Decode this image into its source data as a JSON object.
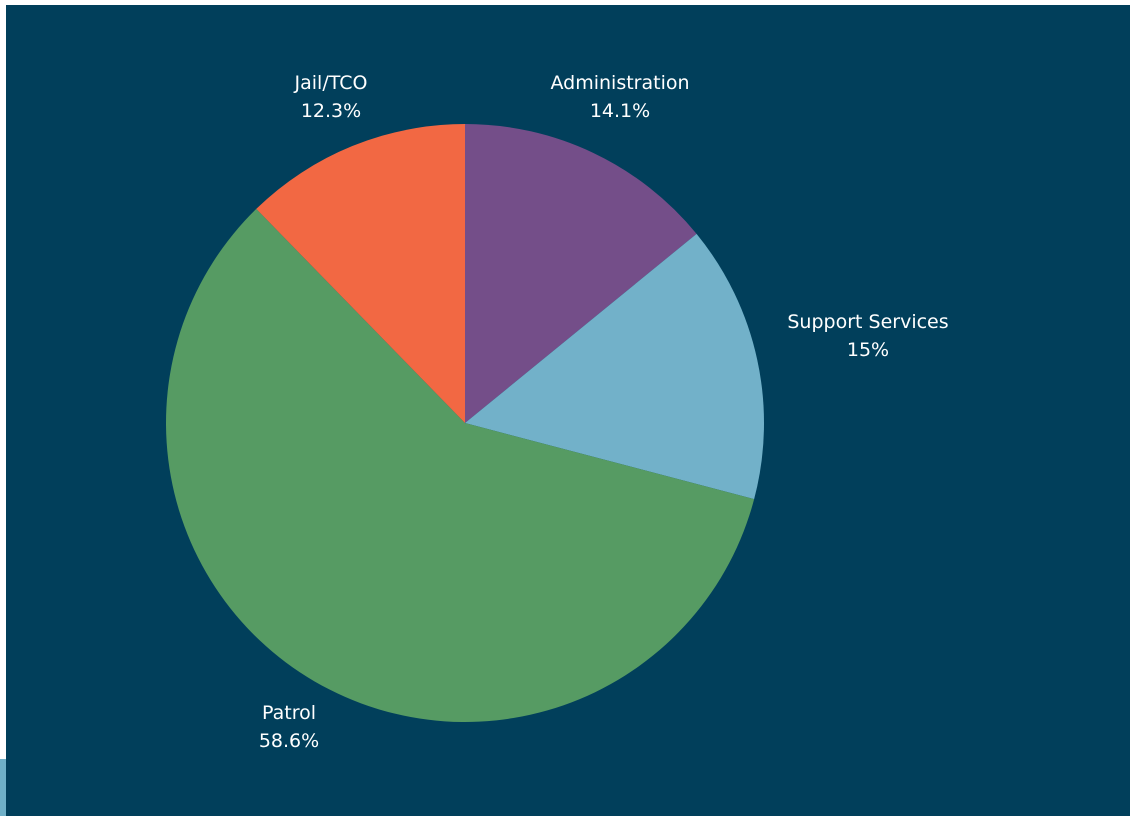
{
  "chart_data": {
    "type": "pie",
    "slices": [
      {
        "label": "Administration",
        "value": 14.1,
        "value_label": "14.1%",
        "color": "#744e89"
      },
      {
        "label": "Support Services",
        "value": 15.0,
        "value_label": "15%",
        "color": "#72b1c9"
      },
      {
        "label": "Patrol",
        "value": 58.6,
        "value_label": "58.6%",
        "color": "#569b63"
      },
      {
        "label": "Jail/TCO",
        "value": 12.3,
        "value_label": "12.3%",
        "color": "#f26843"
      }
    ]
  },
  "colors": {
    "background": "#013f5b",
    "label_text": "#ffffff",
    "edge_accent": "#6fb0c8"
  }
}
